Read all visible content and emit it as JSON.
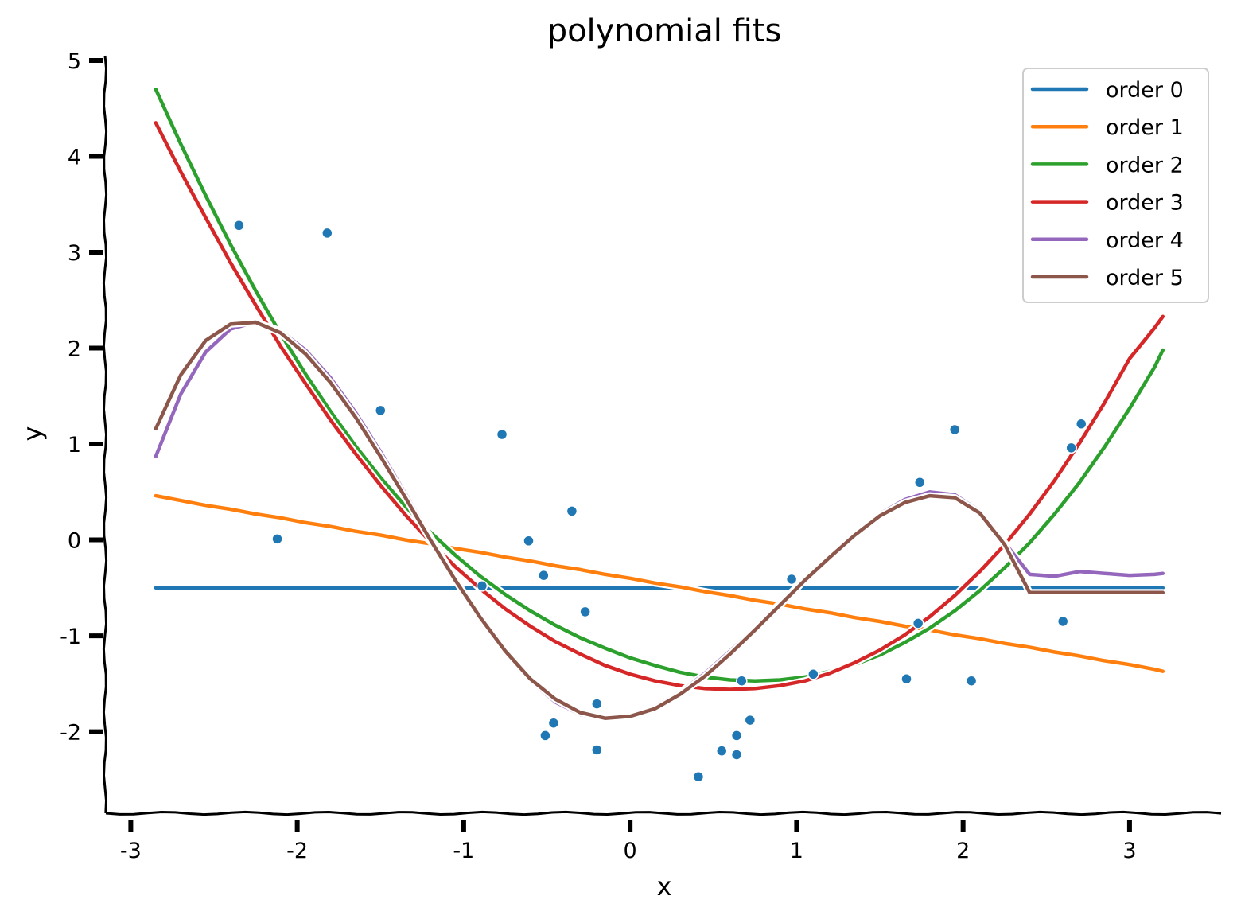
{
  "chart_data": {
    "type": "line",
    "title": "polynomial fits",
    "xlabel": "x",
    "ylabel": "y",
    "xlim": [
      -3.15,
      3.55
    ],
    "ylim": [
      -2.85,
      5.05
    ],
    "xticks": [
      -3,
      -2,
      -1,
      0,
      1,
      2,
      3
    ],
    "yticks": [
      -2,
      -1,
      0,
      1,
      2,
      3,
      4,
      5
    ],
    "grid": false,
    "legend_position": "top-right",
    "x": [
      -2.85,
      -2.7,
      -2.55,
      -2.4,
      -2.25,
      -2.1,
      -1.95,
      -1.8,
      -1.65,
      -1.5,
      -1.35,
      -1.2,
      -1.05,
      -0.9,
      -0.75,
      -0.6,
      -0.45,
      -0.3,
      -0.15,
      0.0,
      0.15,
      0.3,
      0.45,
      0.6,
      0.75,
      0.9,
      1.05,
      1.2,
      1.35,
      1.5,
      1.65,
      1.8,
      1.95,
      2.1,
      2.25,
      2.4,
      2.55,
      2.7,
      2.85,
      3.0,
      3.15,
      3.2
    ],
    "series": [
      {
        "name": "order 0",
        "color": "#1f77b4",
        "values": [
          -0.5,
          -0.5,
          -0.5,
          -0.5,
          -0.5,
          -0.5,
          -0.5,
          -0.5,
          -0.5,
          -0.5,
          -0.5,
          -0.5,
          -0.5,
          -0.5,
          -0.5,
          -0.5,
          -0.5,
          -0.5,
          -0.5,
          -0.5,
          -0.5,
          -0.5,
          -0.5,
          -0.5,
          -0.5,
          -0.5,
          -0.5,
          -0.5,
          -0.5,
          -0.5,
          -0.5,
          -0.5,
          -0.5,
          -0.5,
          -0.5,
          -0.5,
          -0.5,
          -0.5,
          -0.5,
          -0.5,
          -0.5,
          -0.5
        ]
      },
      {
        "name": "order 1",
        "color": "#ff7f0e",
        "values": [
          0.46,
          0.41,
          0.36,
          0.32,
          0.27,
          0.23,
          0.18,
          0.14,
          0.09,
          0.05,
          0.0,
          -0.04,
          -0.09,
          -0.13,
          -0.18,
          -0.22,
          -0.27,
          -0.31,
          -0.36,
          -0.4,
          -0.45,
          -0.49,
          -0.54,
          -0.58,
          -0.63,
          -0.67,
          -0.72,
          -0.76,
          -0.81,
          -0.85,
          -0.9,
          -0.94,
          -0.99,
          -1.03,
          -1.08,
          -1.12,
          -1.17,
          -1.21,
          -1.26,
          -1.3,
          -1.35,
          -1.37
        ]
      },
      {
        "name": "order 2",
        "color": "#2ca02c",
        "values": [
          4.7,
          4.13,
          3.59,
          3.08,
          2.6,
          2.15,
          1.73,
          1.34,
          0.98,
          0.65,
          0.35,
          0.08,
          -0.16,
          -0.38,
          -0.57,
          -0.74,
          -0.89,
          -1.02,
          -1.13,
          -1.23,
          -1.31,
          -1.38,
          -1.43,
          -1.46,
          -1.47,
          -1.46,
          -1.43,
          -1.37,
          -1.3,
          -1.2,
          -1.07,
          -0.92,
          -0.74,
          -0.53,
          -0.29,
          -0.03,
          0.27,
          0.6,
          0.97,
          1.37,
          1.8,
          1.98
        ]
      },
      {
        "name": "order 3",
        "color": "#d62728",
        "values": [
          4.35,
          3.84,
          3.36,
          2.89,
          2.45,
          2.02,
          1.63,
          1.25,
          0.9,
          0.57,
          0.26,
          -0.02,
          -0.28,
          -0.51,
          -0.72,
          -0.9,
          -1.06,
          -1.19,
          -1.31,
          -1.4,
          -1.47,
          -1.52,
          -1.55,
          -1.56,
          -1.55,
          -1.52,
          -1.47,
          -1.39,
          -1.28,
          -1.15,
          -0.99,
          -0.8,
          -0.58,
          -0.33,
          -0.05,
          0.27,
          0.62,
          1.01,
          1.43,
          1.89,
          2.21,
          2.33
        ]
      },
      {
        "name": "order 4",
        "color": "#9467bd",
        "values": [
          0.87,
          1.52,
          1.96,
          2.2,
          2.27,
          2.18,
          1.98,
          1.69,
          1.33,
          0.92,
          0.48,
          0.03,
          -0.41,
          -0.82,
          -1.18,
          -1.47,
          -1.69,
          -1.82,
          -1.87,
          -1.84,
          -1.74,
          -1.59,
          -1.39,
          -1.16,
          -0.92,
          -0.66,
          -0.41,
          -0.16,
          0.07,
          0.27,
          0.42,
          0.5,
          0.47,
          0.3,
          -0.03,
          -0.36,
          -0.38,
          -0.33,
          -0.35,
          -0.37,
          -0.36,
          -0.35
        ]
      },
      {
        "name": "order 5",
        "color": "#8c564b",
        "values": [
          1.16,
          1.72,
          2.08,
          2.25,
          2.27,
          2.16,
          1.94,
          1.64,
          1.28,
          0.87,
          0.44,
          0.0,
          -0.42,
          -0.81,
          -1.16,
          -1.45,
          -1.66,
          -1.8,
          -1.86,
          -1.84,
          -1.76,
          -1.61,
          -1.42,
          -1.19,
          -0.94,
          -0.68,
          -0.42,
          -0.18,
          0.05,
          0.25,
          0.39,
          0.46,
          0.44,
          0.28,
          -0.05,
          -0.55,
          -0.55,
          -0.55,
          -0.55,
          -0.55,
          -0.55,
          -0.55
        ]
      }
    ],
    "scatter": {
      "color": "#1f77b4",
      "points": [
        [
          -2.35,
          3.28
        ],
        [
          -1.82,
          3.2
        ],
        [
          -2.12,
          0.01
        ],
        [
          -1.5,
          1.35
        ],
        [
          -0.89,
          -0.48
        ],
        [
          -0.77,
          1.1
        ],
        [
          -0.61,
          -0.01
        ],
        [
          -0.52,
          -0.37
        ],
        [
          -0.35,
          0.3
        ],
        [
          -0.27,
          -0.75
        ],
        [
          -0.2,
          -1.71
        ],
        [
          -0.2,
          -2.19
        ],
        [
          -0.46,
          -1.91
        ],
        [
          -0.51,
          -2.04
        ],
        [
          0.41,
          -2.47
        ],
        [
          0.55,
          -2.2
        ],
        [
          0.64,
          -2.04
        ],
        [
          0.64,
          -2.24
        ],
        [
          0.67,
          -1.47
        ],
        [
          0.72,
          -1.88
        ],
        [
          0.97,
          -0.41
        ],
        [
          1.1,
          -1.4
        ],
        [
          1.66,
          -1.45
        ],
        [
          1.73,
          -0.87
        ],
        [
          1.74,
          0.6
        ],
        [
          1.95,
          1.15
        ],
        [
          2.05,
          -1.47
        ],
        [
          2.6,
          -0.85
        ],
        [
          2.65,
          0.96
        ],
        [
          2.71,
          1.21
        ]
      ]
    }
  }
}
